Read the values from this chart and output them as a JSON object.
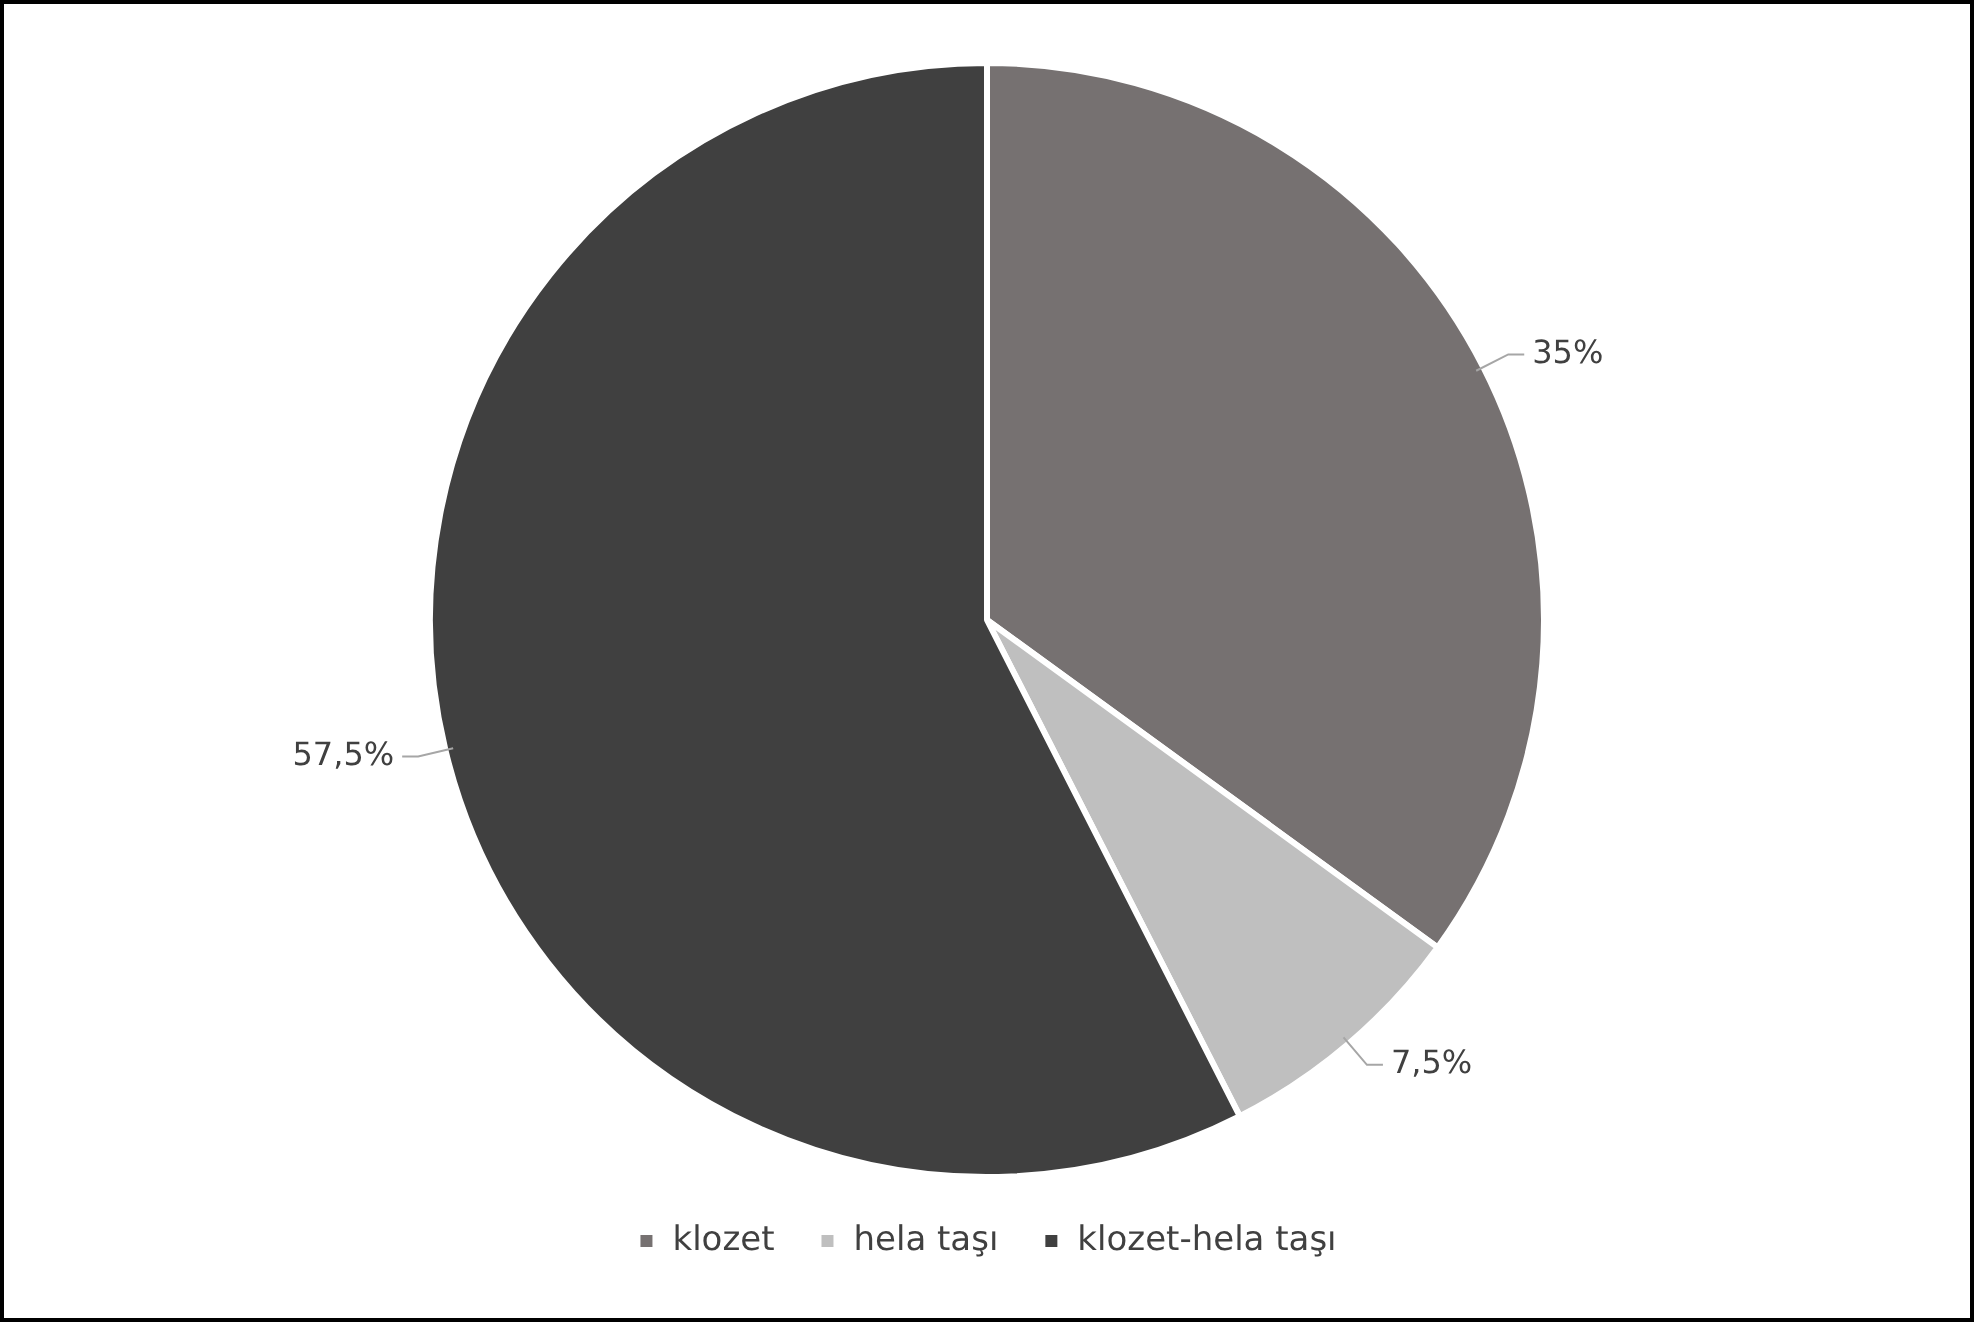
{
  "chart_data": {
    "type": "pie",
    "categories": [
      "klozet",
      "hela taşı",
      "klozet-hela taşı"
    ],
    "values": [
      35,
      7.5,
      57.5
    ],
    "value_labels": [
      "35%",
      "7,5%",
      "57,5%"
    ],
    "colors": [
      "#767171",
      "#bfbfbf",
      "#404040"
    ],
    "legend": "bottom"
  }
}
